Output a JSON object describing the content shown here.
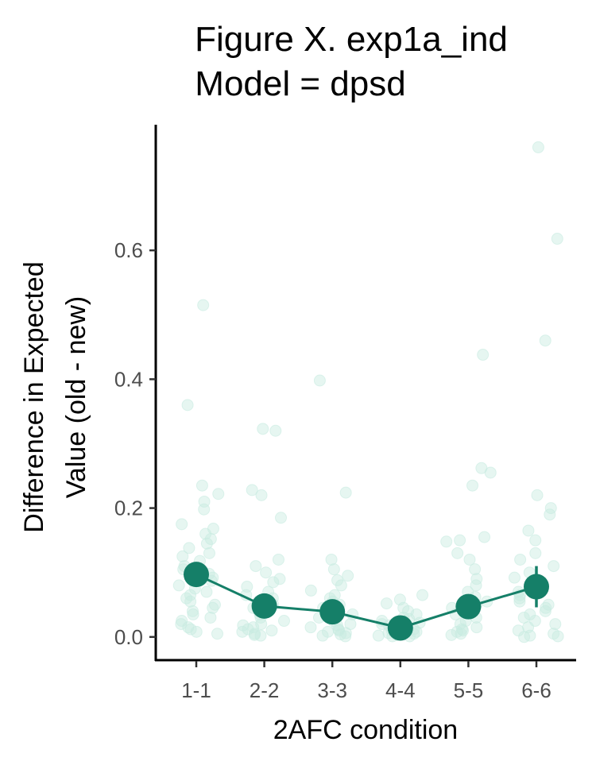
{
  "chart_data": {
    "type": "scatter",
    "title": [
      "Figure X. exp1a_ind",
      "Model = dpsd"
    ],
    "xlabel": "2AFC condition",
    "ylabel": [
      "Difference in Expected",
      "Value (old - new)"
    ],
    "categories": [
      "1-1",
      "2-2",
      "3-3",
      "4-4",
      "5-5",
      "6-6"
    ],
    "ylim": [
      -0.036,
      0.795
    ],
    "yticks": [
      0.0,
      0.2,
      0.4,
      0.6
    ],
    "ytick_labels": [
      "0.0",
      "0.2",
      "0.4",
      "0.6"
    ],
    "grid": false,
    "legend": "none",
    "colors": {
      "mean": "#157f68",
      "points": "#c8ebe1"
    },
    "series": [
      {
        "role": "mean",
        "values": [
          0.097,
          0.048,
          0.039,
          0.014,
          0.047,
          0.078
        ],
        "errors": [
          0.012,
          0.008,
          0.007,
          0.004,
          0.009,
          0.032
        ]
      },
      {
        "role": "individual",
        "points": [
          {
            "x": "1-1",
            "y": [
              0.515,
              0.36,
              0.235,
              0.222,
              0.21,
              0.198,
              0.175,
              0.168,
              0.16,
              0.152,
              0.145,
              0.138,
              0.13,
              0.125,
              0.118,
              0.11,
              0.105,
              0.098,
              0.092,
              0.087,
              0.08,
              0.075,
              0.07,
              0.065,
              0.06,
              0.055,
              0.05,
              0.045,
              0.04,
              0.035,
              0.03,
              0.025,
              0.02,
              0.015,
              0.012,
              0.008,
              0.005
            ]
          },
          {
            "x": "2-2",
            "y": [
              0.323,
              0.32,
              0.228,
              0.22,
              0.185,
              0.12,
              0.11,
              0.1,
              0.09,
              0.085,
              0.078,
              0.07,
              0.065,
              0.06,
              0.055,
              0.05,
              0.045,
              0.04,
              0.035,
              0.03,
              0.025,
              0.02,
              0.018,
              0.015,
              0.012,
              0.01,
              0.008,
              0.005,
              0.003,
              0.002
            ]
          },
          {
            "x": "3-3",
            "y": [
              0.398,
              0.224,
              0.12,
              0.105,
              0.095,
              0.088,
              0.08,
              0.072,
              0.065,
              0.06,
              0.055,
              0.05,
              0.045,
              0.04,
              0.035,
              0.03,
              0.025,
              0.02,
              0.018,
              0.015,
              0.012,
              0.01,
              0.008,
              0.006,
              0.004,
              0.002,
              0.001
            ]
          },
          {
            "x": "4-4",
            "y": [
              0.065,
              0.058,
              0.052,
              0.045,
              0.04,
              0.035,
              0.03,
              0.028,
              0.025,
              0.022,
              0.02,
              0.018,
              0.015,
              0.012,
              0.01,
              0.008,
              0.006,
              0.005,
              0.004,
              0.003,
              0.002,
              0.001,
              0.001
            ]
          },
          {
            "x": "5-5",
            "y": [
              0.438,
              0.262,
              0.255,
              0.235,
              0.155,
              0.15,
              0.148,
              0.13,
              0.12,
              0.105,
              0.09,
              0.08,
              0.07,
              0.062,
              0.055,
              0.05,
              0.045,
              0.04,
              0.035,
              0.03,
              0.025,
              0.02,
              0.015,
              0.012,
              0.01,
              0.008,
              0.005,
              0.003
            ]
          },
          {
            "x": "6-6",
            "y": [
              0.76,
              0.618,
              0.46,
              0.22,
              0.2,
              0.19,
              0.165,
              0.15,
              0.13,
              0.12,
              0.11,
              0.1,
              0.092,
              0.085,
              0.078,
              0.07,
              0.065,
              0.06,
              0.055,
              0.05,
              0.045,
              0.04,
              0.035,
              0.03,
              0.025,
              0.02,
              0.015,
              0.01,
              0.005,
              0.002,
              0.001,
              0.0
            ]
          }
        ]
      }
    ]
  }
}
